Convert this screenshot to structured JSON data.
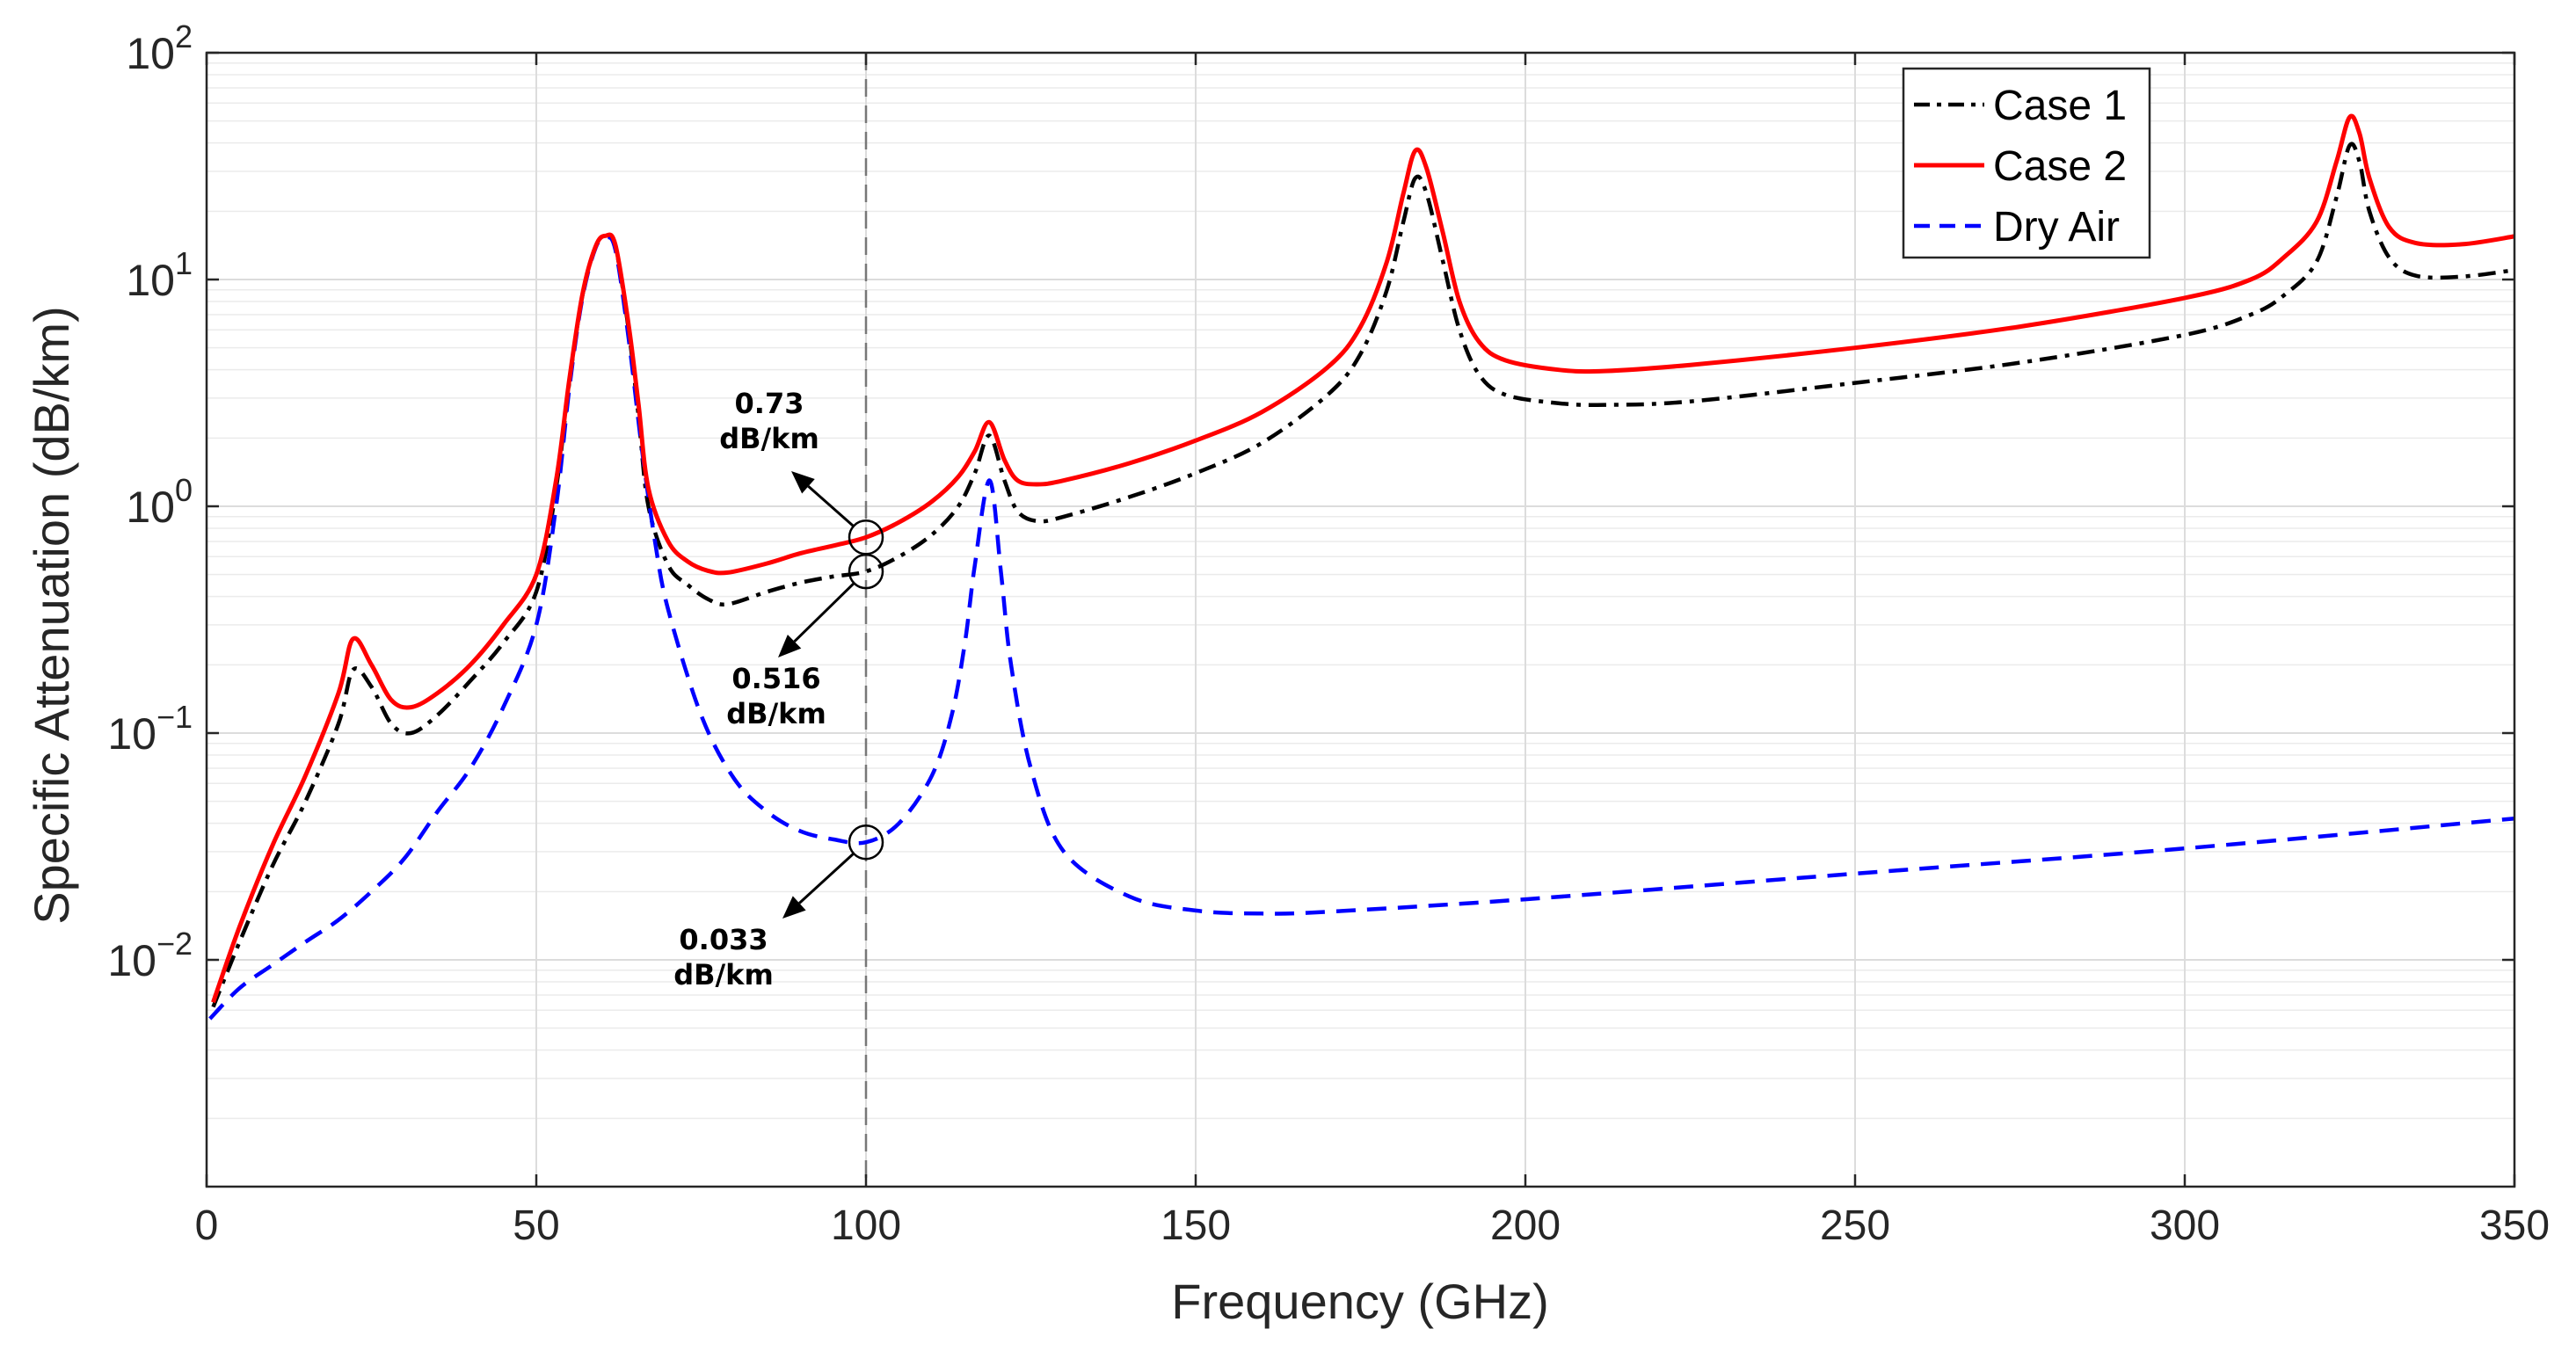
{
  "chart_data": {
    "type": "line",
    "title": "",
    "xlabel": "Frequency (GHz)",
    "ylabel": "Specific Attenuation (dB/km)",
    "xlim": [
      0,
      350
    ],
    "ylim": [
      0.001,
      100
    ],
    "yscale": "log",
    "grid": true,
    "legend_position": "top-right",
    "x_ticks": [
      0,
      50,
      100,
      150,
      200,
      250,
      300,
      350
    ],
    "x_tick_labels": [
      "0",
      "50",
      "100",
      "150",
      "200",
      "250",
      "300",
      "350"
    ],
    "y_ticks": [
      0.01,
      0.1,
      1,
      10,
      100
    ],
    "y_tick_labels": [
      {
        "base": "10",
        "exp": "−2"
      },
      {
        "base": "10",
        "exp": "−1"
      },
      {
        "base": "10",
        "exp": "0"
      },
      {
        "base": "10",
        "exp": "1"
      },
      {
        "base": "10",
        "exp": "2"
      }
    ],
    "series": [
      {
        "name": "Case 1",
        "color": "#000000",
        "style": "dashdot",
        "x": [
          1,
          5,
          10,
          15,
          20,
          22.2,
          25,
          28,
          31,
          35,
          40,
          45,
          50,
          53,
          55,
          57,
          59,
          60.5,
          62,
          64,
          65.5,
          67,
          70,
          73,
          76,
          79,
          85,
          90,
          95,
          100,
          105,
          110,
          114,
          116.5,
          118.7,
          121,
          123,
          126,
          130,
          140,
          150,
          160,
          170,
          175,
          179,
          181.5,
          183.3,
          185,
          187.5,
          190,
          193,
          197,
          205,
          212,
          225,
          250,
          275,
          300,
          310,
          315,
          320,
          323,
          325,
          326.5,
          328,
          331,
          335,
          342,
          350
        ],
        "y": [
          0.0062,
          0.012,
          0.026,
          0.05,
          0.11,
          0.19,
          0.16,
          0.11,
          0.1,
          0.12,
          0.17,
          0.25,
          0.42,
          1.2,
          3.5,
          8.5,
          14,
          15.5,
          14,
          6,
          2.5,
          1.0,
          0.55,
          0.45,
          0.39,
          0.37,
          0.42,
          0.46,
          0.49,
          0.516,
          0.6,
          0.75,
          1.0,
          1.4,
          2.05,
          1.3,
          0.95,
          0.86,
          0.9,
          1.1,
          1.4,
          1.9,
          3.1,
          4.7,
          9,
          18,
          28,
          24,
          12,
          6,
          3.8,
          3.1,
          2.85,
          2.8,
          2.9,
          3.5,
          4.3,
          5.7,
          7.0,
          8.5,
          12,
          23,
          39,
          33,
          20,
          12.5,
          10.4,
          10.3,
          11
        ]
      },
      {
        "name": "Case 2",
        "color": "#ff0000",
        "style": "solid",
        "x": [
          1,
          5,
          10,
          15,
          20,
          22.2,
          25,
          28,
          31,
          35,
          40,
          45,
          50,
          53,
          55,
          57,
          59,
          60.5,
          62,
          64,
          65.5,
          67,
          70,
          73,
          76,
          79,
          85,
          90,
          95,
          100,
          105,
          110,
          114,
          116.5,
          118.7,
          121,
          123,
          126,
          130,
          140,
          150,
          160,
          170,
          175,
          179,
          181.5,
          183.3,
          185,
          187.5,
          190,
          193,
          197,
          205,
          212,
          225,
          250,
          275,
          300,
          310,
          315,
          320,
          323,
          325,
          326.5,
          328,
          331,
          335,
          342,
          350
        ],
        "y": [
          0.0065,
          0.014,
          0.032,
          0.065,
          0.15,
          0.26,
          0.2,
          0.14,
          0.13,
          0.15,
          0.2,
          0.3,
          0.5,
          1.3,
          3.6,
          8.6,
          14,
          15.6,
          14.2,
          6.3,
          2.8,
          1.2,
          0.7,
          0.57,
          0.52,
          0.51,
          0.56,
          0.62,
          0.67,
          0.73,
          0.85,
          1.05,
          1.35,
          1.75,
          2.35,
          1.6,
          1.3,
          1.25,
          1.3,
          1.55,
          1.95,
          2.6,
          4.1,
          6.2,
          12,
          24,
          37,
          31,
          16,
          8,
          5.3,
          4.4,
          4.0,
          3.95,
          4.2,
          5.0,
          6.2,
          8.3,
          10,
          12.5,
          18,
          33,
          52,
          44,
          28,
          17,
          14.5,
          14.3,
          15.5
        ]
      },
      {
        "name": "Dry Air",
        "color": "#0000ff",
        "style": "dashed",
        "x": [
          0.5,
          5,
          10,
          15,
          20,
          25,
          30,
          35,
          40,
          45,
          50,
          53,
          55,
          57,
          59,
          60.5,
          62,
          64,
          66,
          68,
          70,
          75,
          80,
          85,
          90,
          95,
          100,
          105,
          110,
          113,
          115,
          116.5,
          118.75,
          120.5,
          122,
          125,
          130,
          140,
          150,
          160,
          170,
          200,
          250,
          300,
          350
        ],
        "y": [
          0.0055,
          0.0075,
          0.0095,
          0.012,
          0.015,
          0.02,
          0.028,
          0.045,
          0.07,
          0.13,
          0.3,
          1.0,
          3.3,
          8.3,
          13.8,
          15.3,
          13.5,
          5.5,
          1.8,
          0.7,
          0.35,
          0.12,
          0.063,
          0.045,
          0.037,
          0.034,
          0.033,
          0.04,
          0.065,
          0.12,
          0.25,
          0.55,
          1.3,
          0.5,
          0.2,
          0.07,
          0.03,
          0.019,
          0.0165,
          0.016,
          0.0163,
          0.0185,
          0.024,
          0.031,
          0.042
        ]
      }
    ],
    "reference_line": {
      "x": 100,
      "style": "dashed",
      "color": "#777777"
    },
    "annotations": [
      {
        "series": "Case 2",
        "x": 100,
        "y": 0.73,
        "line1": "0.73",
        "line2": "dB/km"
      },
      {
        "series": "Case 1",
        "x": 100,
        "y": 0.516,
        "line1": "0.516",
        "line2": "dB/km"
      },
      {
        "series": "Dry Air",
        "x": 100,
        "y": 0.033,
        "line1": "0.033",
        "line2": "dB/km"
      }
    ]
  }
}
